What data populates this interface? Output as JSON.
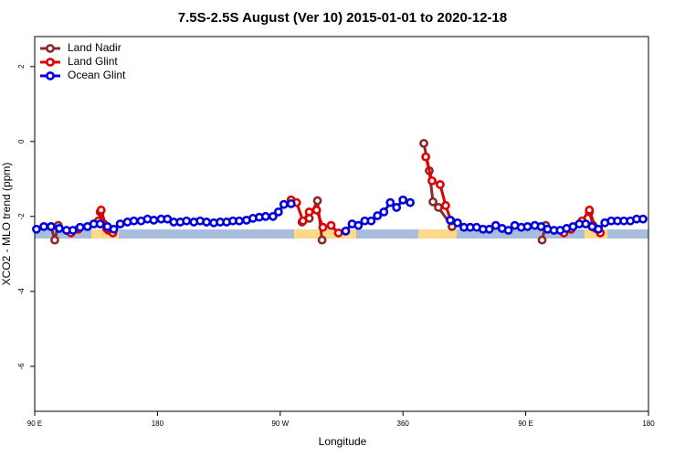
{
  "chart_data": {
    "type": "line",
    "title": "7.5S-2.5S August (Ver 10)   2015-01-01 to 2020-12-18",
    "xlabel": "Longitude",
    "ylabel": "XCO2 - MLO trend (ppm)",
    "xlim": [
      90,
      540
    ],
    "ylim": [
      -7.2,
      2.8
    ],
    "xticks": [
      {
        "value": 90,
        "label": "90 E"
      },
      180,
      {
        "value": 270,
        "label": "90 W"
      },
      360,
      {
        "value": 450,
        "label": "90 E"
      },
      {
        "value": 540,
        "label": "180"
      }
    ],
    "yticks": [
      2,
      0,
      -2,
      -4,
      -6
    ],
    "grid": false,
    "legend": "top-left",
    "series": [
      {
        "name": "Land Nadir",
        "color": "#8b2a2a",
        "x": [
          102,
          104.7,
          107.3,
          null,
          138,
          140.7,
          144,
          null,
          286,
          291.3,
          297.3,
          300.7,
          null,
          375.3,
          379.3,
          382,
          386,
          396,
          null,
          462,
          464.7,
          null,
          496.7,
          499.3
        ],
        "values": [
          -2.27,
          -2.63,
          -2.24,
          null,
          -1.88,
          -2.2,
          -2.37,
          null,
          -2.15,
          -2.05,
          -1.58,
          -2.63,
          null,
          -0.05,
          -0.78,
          -1.61,
          -1.76,
          -2.27,
          null,
          -2.63,
          -2.24,
          null,
          -1.88,
          -2.24
        ]
      },
      {
        "name": "Land Glint",
        "color": "#e00000",
        "x": [
          116.7,
          122,
          null,
          136.7,
          138.7,
          142.7,
          147.3,
          null,
          278,
          282,
          286.7,
          291.3,
          296.7,
          301.3,
          307.3,
          312.7,
          null,
          376.7,
          381.3,
          387.3,
          391.3,
          395.3,
          null,
          478,
          483.3,
          null,
          491.3,
          496.7,
          501.3,
          504.7
        ],
        "values": [
          -2.44,
          -2.34,
          null,
          -2.12,
          -1.83,
          -2.32,
          -2.44,
          null,
          -1.56,
          -1.63,
          -2.12,
          -1.88,
          -1.83,
          -2.29,
          -2.24,
          -2.44,
          null,
          -0.41,
          -1.05,
          -1.15,
          -1.71,
          -2.12,
          null,
          -2.44,
          -2.34,
          null,
          -2.12,
          -1.83,
          -2.32,
          -2.44
        ]
      },
      {
        "name": "Ocean Glint",
        "color": "#0000e0",
        "x": [
          91.3,
          96.7,
          102,
          108,
          113.3,
          118,
          123.3,
          128.7,
          133.3,
          138,
          143.3,
          148,
          152.7,
          158,
          162.7,
          168,
          172.7,
          177.3,
          182.7,
          187.3,
          192,
          196.7,
          201.3,
          206.7,
          211.3,
          216,
          221.3,
          226,
          230.7,
          235.3,
          240,
          245.3,
          250,
          254.7,
          259.3,
          264.7,
          268.7,
          272.7,
          278,
          null,
          318,
          322.7,
          327.3,
          332,
          336.7,
          341.3,
          346,
          350.7,
          355.3,
          360,
          365.3,
          null,
          394.7,
          400,
          404.7,
          409.3,
          414,
          418.7,
          423.3,
          428,
          432.7,
          437.3,
          442,
          446.7,
          451.3,
          456.7,
          461.3,
          466,
          470.7,
          475.3,
          480,
          484.7,
          489.3,
          494,
          498.7,
          503.3,
          508,
          512.7,
          517.3,
          522,
          526.7,
          531.3,
          536
        ],
        "values": [
          -2.34,
          -2.27,
          -2.27,
          -2.32,
          -2.37,
          -2.37,
          -2.29,
          -2.27,
          -2.2,
          -2.2,
          -2.27,
          -2.34,
          -2.2,
          -2.15,
          -2.12,
          -2.12,
          -2.07,
          -2.1,
          -2.07,
          -2.07,
          -2.15,
          -2.15,
          -2.12,
          -2.15,
          -2.12,
          -2.15,
          -2.17,
          -2.15,
          -2.15,
          -2.12,
          -2.12,
          -2.1,
          -2.05,
          -2.02,
          -2.0,
          -2.0,
          -1.88,
          -1.68,
          -1.66,
          null,
          -2.39,
          -2.2,
          -2.24,
          -2.12,
          -2.12,
          -1.98,
          -1.88,
          -1.63,
          -1.76,
          -1.56,
          -1.63,
          null,
          -2.1,
          -2.17,
          -2.29,
          -2.29,
          -2.29,
          -2.34,
          -2.34,
          -2.24,
          -2.32,
          -2.37,
          -2.24,
          -2.29,
          -2.27,
          -2.24,
          -2.27,
          -2.34,
          -2.37,
          -2.37,
          -2.32,
          -2.27,
          -2.2,
          -2.2,
          -2.27,
          -2.34,
          -2.17,
          -2.12,
          -2.12,
          -2.12,
          -2.12,
          -2.07,
          -2.07
        ]
      }
    ]
  }
}
